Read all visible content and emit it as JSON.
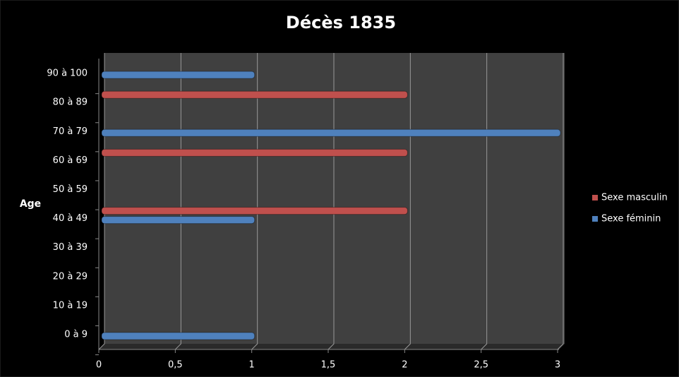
{
  "chart_data": {
    "type": "bar",
    "orientation": "horizontal",
    "title": "Décès 1835",
    "y_label": "Age",
    "categories": [
      "0 à 9",
      "10 à 19",
      "20 à 29",
      "30 à 39",
      "40 à 49",
      "50 à 59",
      "60 à 69",
      "70 à 79",
      "80 à 89",
      "90 à 100"
    ],
    "series": [
      {
        "name": "Sexe masculin",
        "color": "#c0504d",
        "values": [
          0,
          0,
          0,
          0,
          2,
          0,
          2,
          0,
          2,
          0
        ]
      },
      {
        "name": "Sexe féminin",
        "color": "#4f81bd",
        "values": [
          1,
          0,
          0,
          0,
          1,
          0,
          0,
          3,
          0,
          1
        ]
      }
    ],
    "xlim": [
      0,
      3
    ],
    "xticks": [
      0,
      {
        "value": 0.5,
        "label": "0,5"
      },
      1,
      {
        "value": 1.5,
        "label": "1,5"
      },
      2,
      {
        "value": 2.5,
        "label": "2,5"
      },
      3
    ],
    "grid": true,
    "legend": "right"
  }
}
